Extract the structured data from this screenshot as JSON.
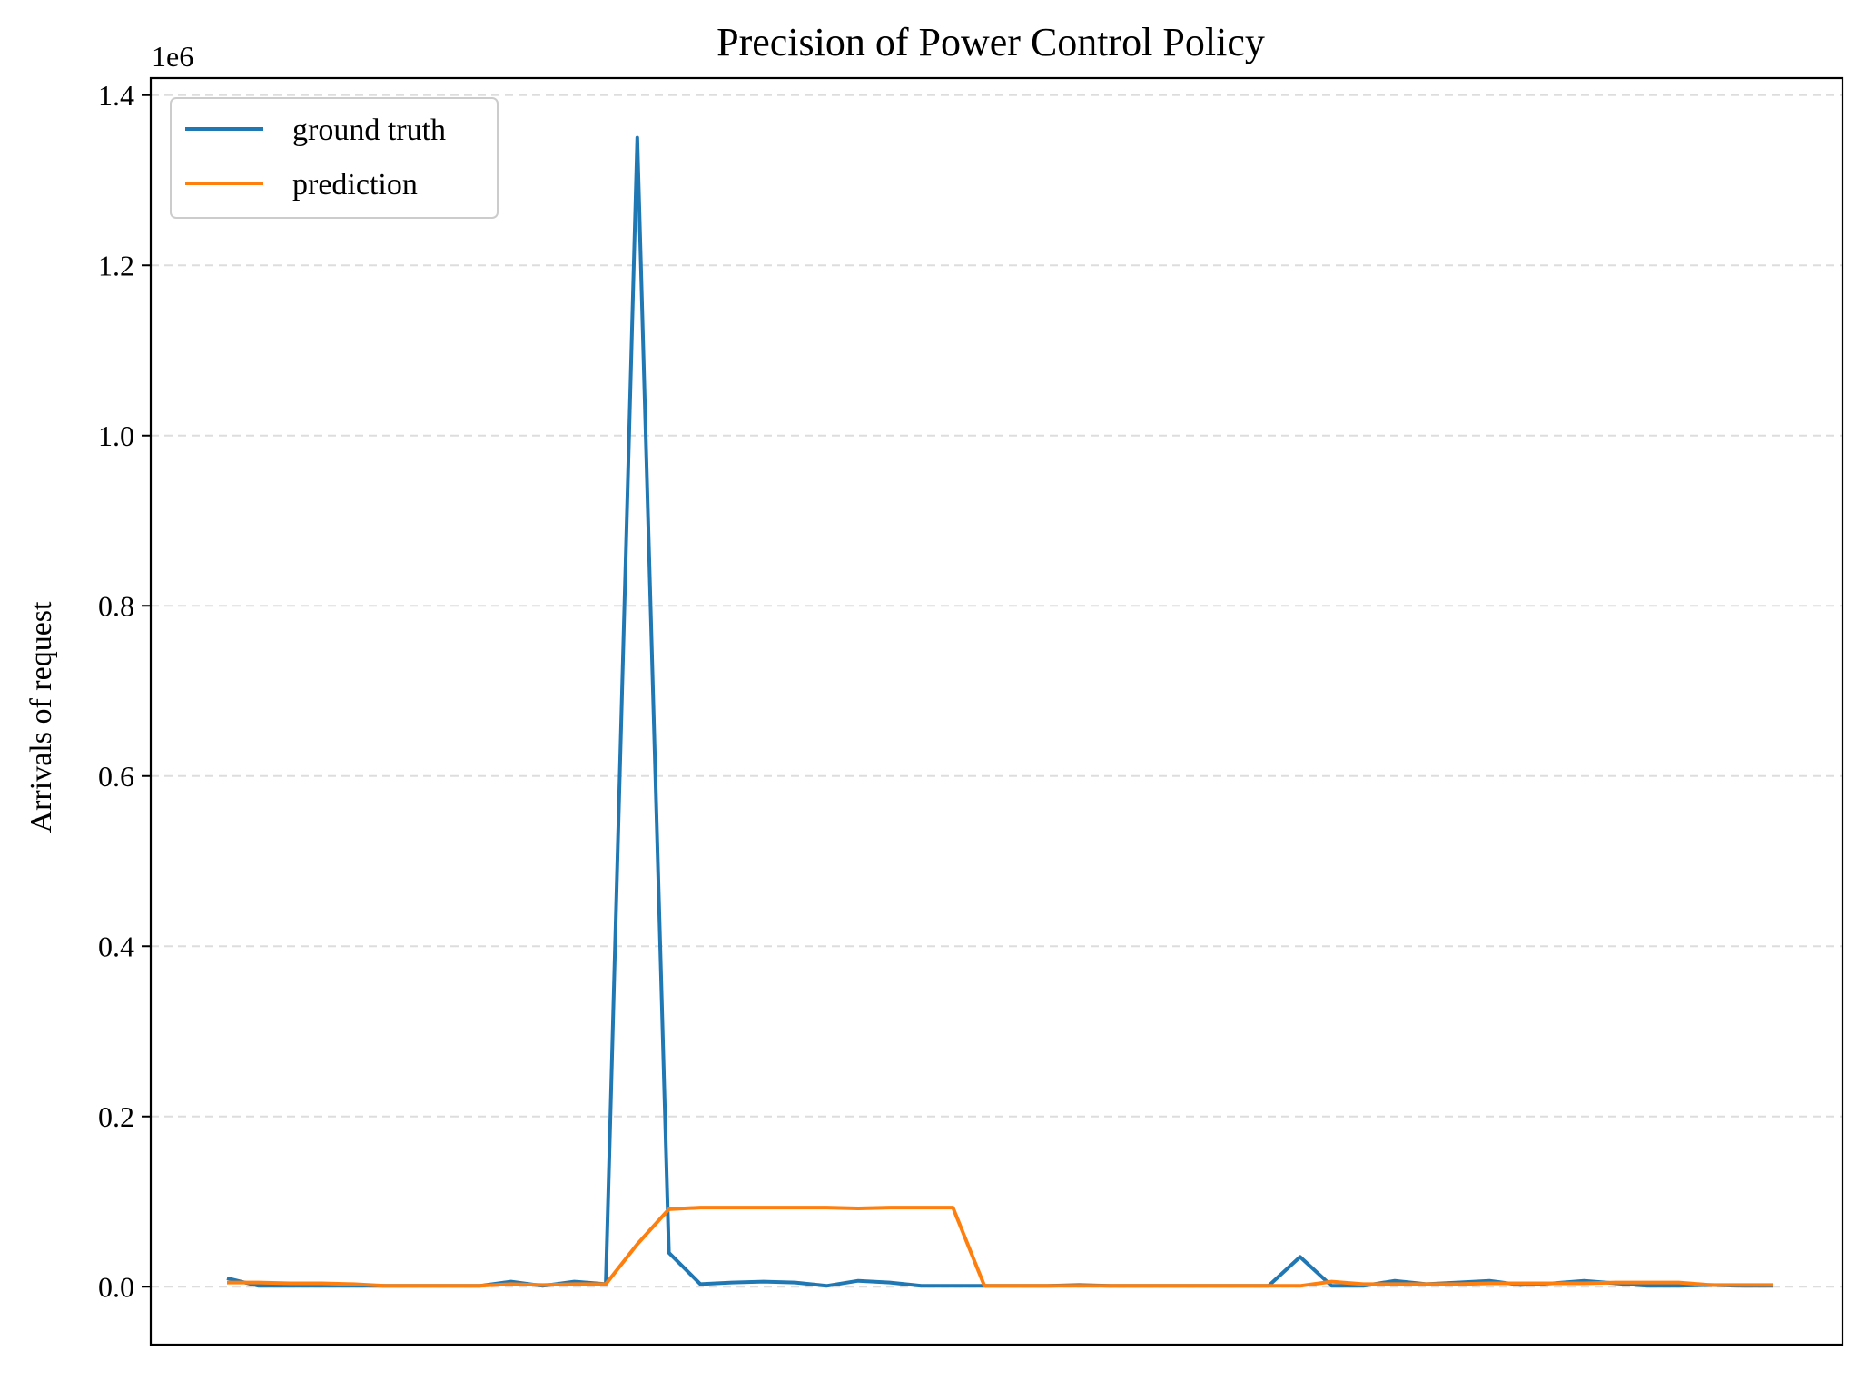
{
  "chart_data": {
    "type": "line",
    "title": "Precision of Power Control Policy",
    "xlabel": "",
    "ylabel": "Arrivals of request",
    "y_offset_label": "1e6",
    "ylim": [
      -0.068,
      1.42
    ],
    "y_ticks": [
      0.0,
      0.2,
      0.4,
      0.6,
      0.8,
      1.0,
      1.2,
      1.4
    ],
    "y_tick_labels": [
      "0.0",
      "0.2",
      "0.4",
      "0.6",
      "0.8",
      "1.0",
      "1.2",
      "1.4"
    ],
    "grid": "horizontal dashed",
    "legend_position": "upper-left",
    "x": [
      0,
      1,
      2,
      3,
      4,
      5,
      6,
      7,
      8,
      9,
      10,
      11,
      12,
      13,
      14,
      15,
      16,
      17,
      18,
      19,
      20,
      21,
      22,
      23,
      24,
      25,
      26,
      27,
      28,
      29,
      30,
      31,
      32,
      33,
      34,
      35,
      36,
      37,
      38,
      39,
      40,
      41,
      42,
      43,
      44,
      45,
      46,
      47,
      48,
      49
    ],
    "series": [
      {
        "name": "ground truth",
        "color": "#1f77b4",
        "values": [
          0.01,
          0.001,
          0.001,
          0.001,
          0.001,
          0.001,
          0.001,
          0.001,
          0.001,
          0.006,
          0.001,
          0.006,
          0.003,
          1.35,
          0.04,
          0.003,
          0.005,
          0.006,
          0.005,
          0.001,
          0.007,
          0.005,
          0.001,
          0.001,
          0.001,
          0.001,
          0.001,
          0.002,
          0.001,
          0.001,
          0.001,
          0.001,
          0.001,
          0.001,
          0.035,
          0.001,
          0.001,
          0.007,
          0.003,
          0.005,
          0.007,
          0.002,
          0.004,
          0.007,
          0.004,
          0.001,
          0.001,
          0.002,
          0.001,
          0.001
        ]
      },
      {
        "name": "prediction",
        "color": "#ff7f0e",
        "values": [
          0.005,
          0.005,
          0.004,
          0.004,
          0.003,
          0.001,
          0.001,
          0.001,
          0.001,
          0.003,
          0.002,
          0.003,
          0.003,
          0.05,
          0.091,
          0.093,
          0.093,
          0.093,
          0.093,
          0.093,
          0.092,
          0.093,
          0.093,
          0.093,
          0.001,
          0.001,
          0.001,
          0.001,
          0.001,
          0.001,
          0.001,
          0.001,
          0.001,
          0.001,
          0.001,
          0.006,
          0.003,
          0.003,
          0.003,
          0.003,
          0.004,
          0.004,
          0.004,
          0.004,
          0.005,
          0.005,
          0.005,
          0.002,
          0.002,
          0.002
        ]
      }
    ]
  }
}
